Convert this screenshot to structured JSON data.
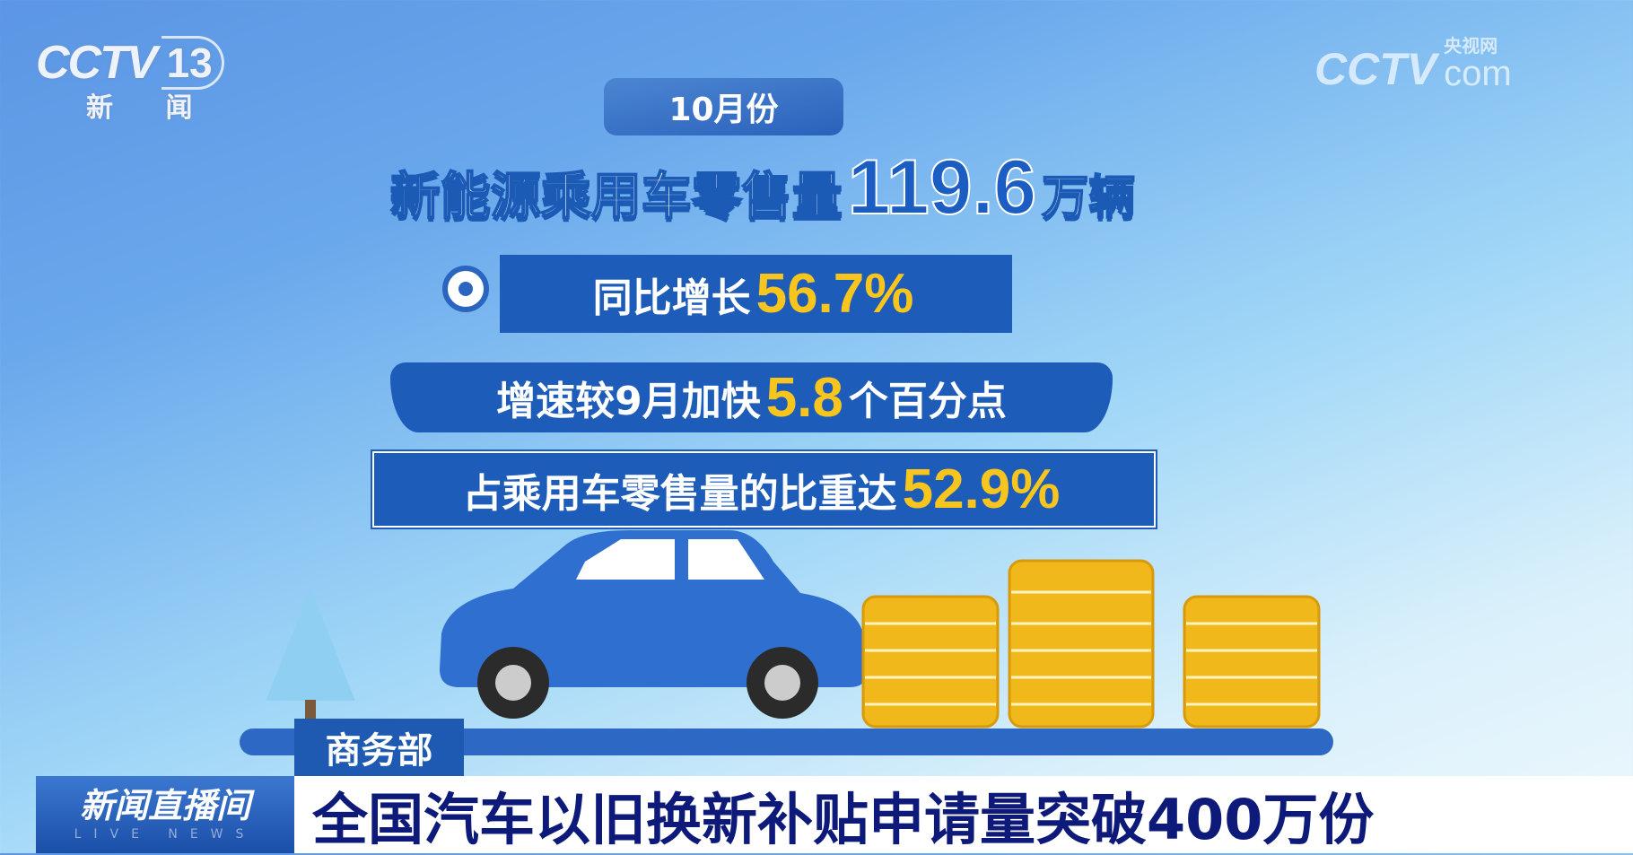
{
  "channel_logo": {
    "brand": "CCTV",
    "channel": "13",
    "subtitle": "新 闻"
  },
  "site_logo": {
    "brand": "CCTV",
    "cn": "央视网",
    "suffix": "com"
  },
  "month_label": "10月份",
  "headline_stat": {
    "label": "新能源乘用车零售量",
    "value": "119.6",
    "unit": "万辆"
  },
  "stats": [
    {
      "label": "同比增长",
      "value": "56.7%",
      "suffix": ""
    },
    {
      "label": "增速较9月加快",
      "value": "5.8",
      "suffix": "个百分点"
    },
    {
      "label": "占乘用车零售量的比重达",
      "value": "52.9%",
      "suffix": ""
    }
  ],
  "colors": {
    "accent_blue": "#1d5cb9",
    "highlight_yellow": "#f7c51d",
    "coin": "#f0b81a",
    "car": "#2f6fd0"
  },
  "source_tag": "商务部",
  "program": {
    "name": "新闻直播间",
    "sub": "LIVE NEWS"
  },
  "news_headline": "全国汽车以旧换新补贴申请量突破400万份"
}
